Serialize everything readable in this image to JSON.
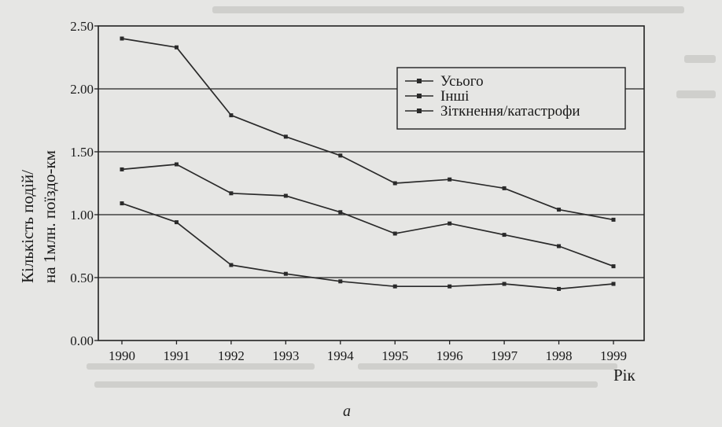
{
  "caption": "a",
  "chart_data": {
    "type": "line",
    "title": "",
    "xlabel": "Рік",
    "ylabel": [
      "Кількість подій/",
      "на 1млн. поїздо-км"
    ],
    "x": [
      1990,
      1991,
      1992,
      1993,
      1994,
      1995,
      1996,
      1997,
      1998,
      1999
    ],
    "ylim": [
      0,
      2.5
    ],
    "yticks": [
      "0.00",
      "0.50",
      "1.00",
      "1.50",
      "2.00",
      "2.50"
    ],
    "grid": "horizontal",
    "legend_position": "top-right",
    "series": [
      {
        "name": "Усього",
        "values": [
          2.4,
          2.33,
          1.79,
          1.62,
          1.47,
          1.25,
          1.28,
          1.21,
          1.04,
          0.96
        ]
      },
      {
        "name": "Інші",
        "values": [
          1.36,
          1.4,
          1.17,
          1.15,
          1.02,
          0.85,
          0.93,
          0.84,
          0.75,
          0.59
        ]
      },
      {
        "name": "Зіткнення/катастрофи",
        "values": [
          1.09,
          0.94,
          0.6,
          0.53,
          0.47,
          0.43,
          0.43,
          0.45,
          0.41,
          0.45
        ]
      }
    ],
    "line_color": "#2a2a2a"
  }
}
